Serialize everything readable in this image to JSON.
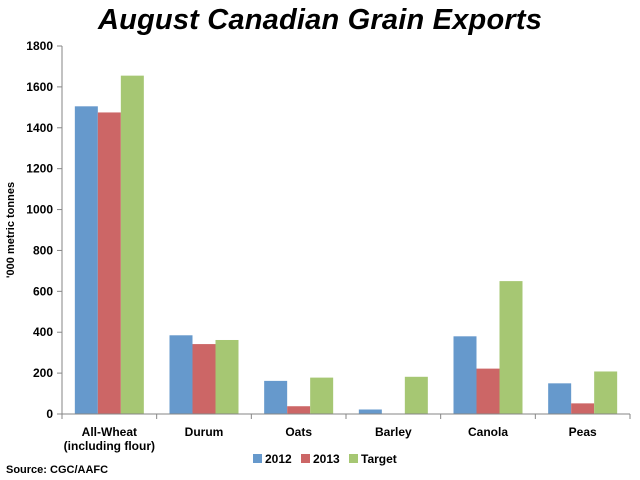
{
  "chart_data": {
    "type": "bar",
    "title": "August Canadian Grain Exports",
    "ylabel": "'000 metric tonnes",
    "xlabel": "",
    "ylim": [
      0,
      1800
    ],
    "yticks": [
      0,
      200,
      400,
      600,
      800,
      1000,
      1200,
      1400,
      1600,
      1800
    ],
    "categories": [
      [
        "All-Wheat",
        "(including flour)"
      ],
      [
        "Durum"
      ],
      [
        "Oats"
      ],
      [
        "Barley"
      ],
      [
        "Canola"
      ],
      [
        "Peas"
      ]
    ],
    "series": [
      {
        "name": "2012",
        "color": "#6699CC",
        "values": [
          1505,
          385,
          162,
          22,
          380,
          150
        ]
      },
      {
        "name": "2013",
        "color": "#CC6666",
        "values": [
          1475,
          342,
          38,
          0,
          222,
          52
        ]
      },
      {
        "name": "Target",
        "color": "#A6C773",
        "values": [
          1655,
          362,
          178,
          182,
          650,
          208
        ]
      }
    ],
    "legend_position": "bottom-center",
    "grid": false,
    "source": "Source: CGC/AAFC"
  }
}
